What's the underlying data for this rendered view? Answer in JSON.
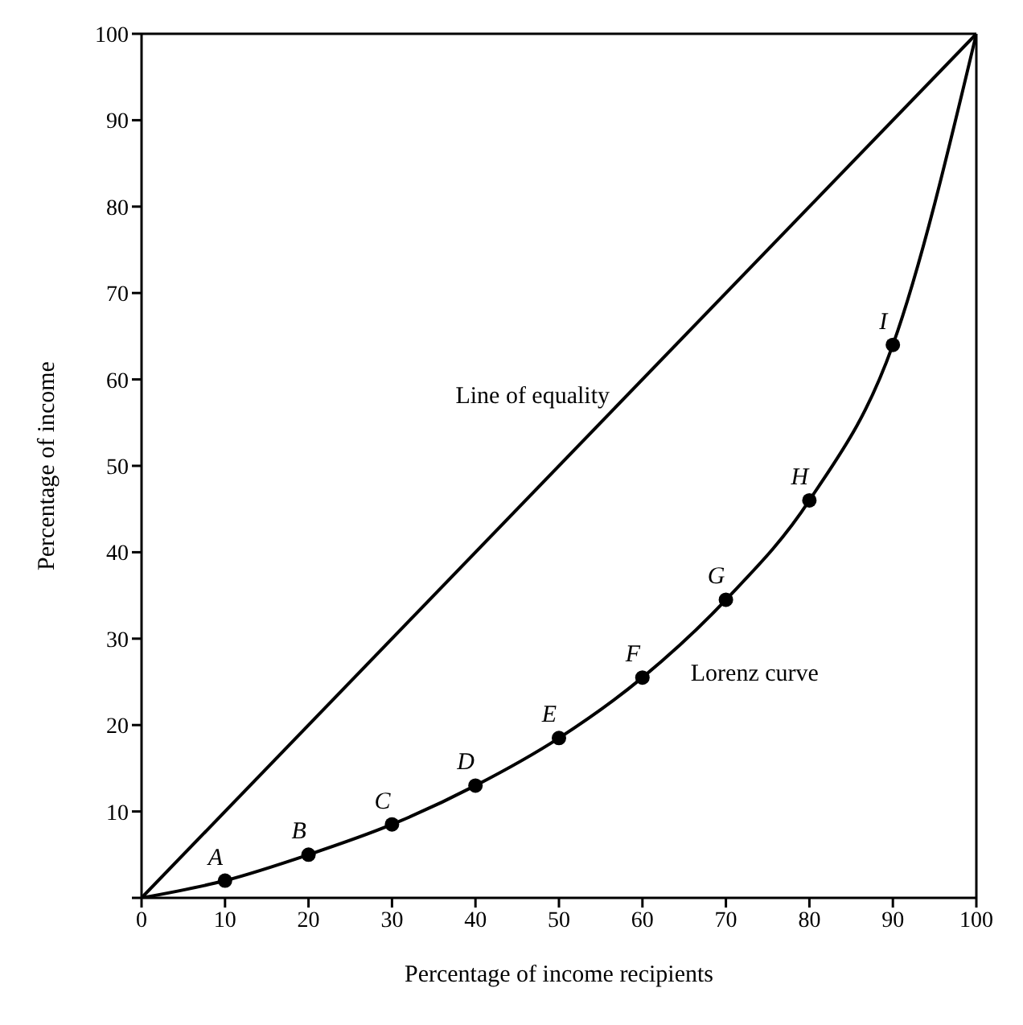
{
  "chart_data": {
    "type": "line",
    "xlabel": "Percentage of income recipients",
    "ylabel": "Percentage of income",
    "xlim": [
      0,
      100
    ],
    "ylim": [
      0,
      100
    ],
    "xticks": [
      0,
      10,
      20,
      30,
      40,
      50,
      60,
      70,
      80,
      90,
      100
    ],
    "yticks": [
      {
        "value": 0,
        "label": null
      },
      10,
      20,
      30,
      40,
      50,
      60,
      70,
      80,
      90,
      100
    ],
    "grid": false,
    "legend": false,
    "series": [
      {
        "name": "Line of equality",
        "color": "#000000",
        "marker": "none",
        "x": [
          0,
          100
        ],
        "values": [
          0,
          100
        ]
      },
      {
        "name": "Lorenz curve",
        "color": "#000000",
        "marker": "none",
        "x": [
          0,
          10,
          20,
          30,
          40,
          50,
          60,
          70,
          80,
          90,
          100
        ],
        "values": [
          0,
          2,
          5,
          8.5,
          13,
          18.5,
          25.5,
          34.5,
          46,
          64,
          100
        ]
      },
      {
        "type": "scatter",
        "color": "#000000",
        "marker": "circle",
        "x": [
          10,
          20,
          30,
          40,
          50,
          60,
          70,
          80,
          90
        ],
        "values": [
          2,
          5,
          8.5,
          13,
          18.5,
          25.5,
          34.5,
          46,
          64
        ]
      }
    ],
    "annotations": [
      {
        "text": "A",
        "x": 10,
        "y": 2
      },
      {
        "text": "B",
        "x": 20,
        "y": 5
      },
      {
        "text": "C",
        "x": 30,
        "y": 8.5
      },
      {
        "text": "D",
        "x": 40,
        "y": 13
      },
      {
        "text": "E",
        "x": 50,
        "y": 18.5
      },
      {
        "text": "F",
        "x": 60,
        "y": 25.5
      },
      {
        "text": "G",
        "x": 70,
        "y": 34.5
      },
      {
        "text": "H",
        "x": 80,
        "y": 46
      },
      {
        "text": "I",
        "x": 90,
        "y": 64
      }
    ]
  }
}
